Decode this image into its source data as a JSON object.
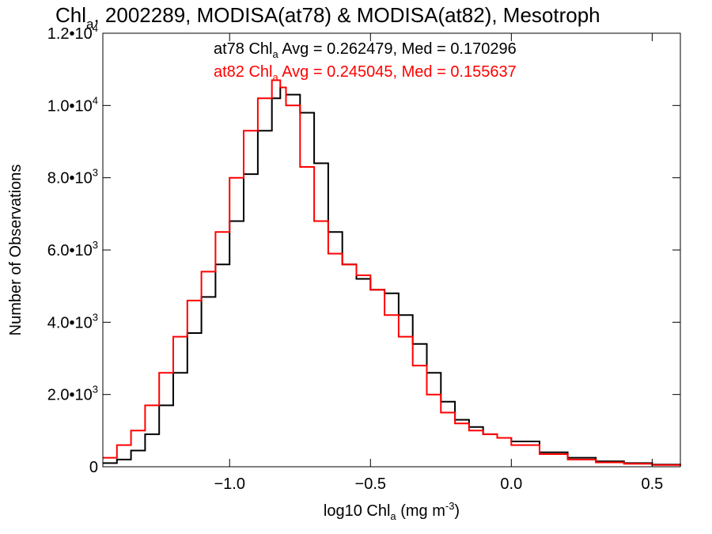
{
  "chart_data": {
    "type": "line",
    "title": {
      "main": "Chl",
      "sub": "a",
      "rest": ", 2002289, MODISA(at78) & MODISA(at82), Mesotroph"
    },
    "xlabel": {
      "main": "log10 Chl",
      "sub": "a",
      "rest": " (mg m",
      "sup": "-3",
      "end": ")"
    },
    "ylabel": "Number of Observations",
    "xlim": [
      -1.45,
      0.6
    ],
    "ylim": [
      0,
      12000
    ],
    "x_ticks": [
      {
        "value": -1.0,
        "label": "−1.0"
      },
      {
        "value": -0.5,
        "label": "−0.5"
      },
      {
        "value": 0.0,
        "label": "0.0"
      },
      {
        "value": 0.5,
        "label": "0.5"
      }
    ],
    "y_ticks": [
      {
        "value": 0,
        "label": "0"
      },
      {
        "value": 2000,
        "mant": "2.0•10",
        "exp": "3"
      },
      {
        "value": 4000,
        "mant": "4.0•10",
        "exp": "3"
      },
      {
        "value": 6000,
        "mant": "6.0•10",
        "exp": "3"
      },
      {
        "value": 8000,
        "mant": "8.0•10",
        "exp": "3"
      },
      {
        "value": 10000,
        "mant": "1.0•10",
        "exp": "4"
      },
      {
        "value": 12000,
        "mant": "1.2•10",
        "exp": "4"
      }
    ],
    "annotations": [
      {
        "pre": "at78 Chl",
        "sub": "a",
        "post": " Avg = 0.262479, Med = 0.170296",
        "color": "#000000"
      },
      {
        "pre": "at82 Chl",
        "sub": "a",
        "post": " Avg = 0.245045, Med = 0.155637",
        "color": "#ff0000"
      }
    ],
    "series": [
      {
        "color": "#000000",
        "x": [
          -1.45,
          -1.4,
          -1.35,
          -1.3,
          -1.25,
          -1.2,
          -1.15,
          -1.1,
          -1.05,
          -1.0,
          -0.95,
          -0.9,
          -0.85,
          -0.82,
          -0.8,
          -0.75,
          -0.7,
          -0.65,
          -0.6,
          -0.55,
          -0.5,
          -0.45,
          -0.4,
          -0.35,
          -0.3,
          -0.25,
          -0.2,
          -0.15,
          -0.1,
          -0.05,
          0.0,
          0.1,
          0.2,
          0.3,
          0.4,
          0.5,
          0.6
        ],
        "y": [
          100,
          200,
          450,
          900,
          1700,
          2600,
          3700,
          4700,
          5600,
          6800,
          8100,
          9300,
          10200,
          10500,
          10300,
          9800,
          8400,
          6500,
          5600,
          5200,
          4900,
          4800,
          4200,
          3400,
          2600,
          1800,
          1300,
          1100,
          900,
          800,
          700,
          400,
          250,
          150,
          100,
          60,
          30
        ]
      },
      {
        "color": "#ff0000",
        "x": [
          -1.45,
          -1.4,
          -1.35,
          -1.3,
          -1.25,
          -1.2,
          -1.15,
          -1.1,
          -1.05,
          -1.0,
          -0.95,
          -0.9,
          -0.85,
          -0.82,
          -0.8,
          -0.75,
          -0.7,
          -0.65,
          -0.6,
          -0.55,
          -0.5,
          -0.45,
          -0.4,
          -0.35,
          -0.3,
          -0.25,
          -0.2,
          -0.15,
          -0.1,
          -0.05,
          0.0,
          0.1,
          0.2,
          0.3,
          0.4,
          0.5,
          0.6
        ],
        "y": [
          250,
          600,
          1000,
          1700,
          2600,
          3600,
          4600,
          5400,
          6500,
          8000,
          9300,
          10200,
          10700,
          10500,
          10000,
          8300,
          6800,
          5900,
          5600,
          5300,
          4900,
          4200,
          3600,
          2800,
          2000,
          1500,
          1200,
          1000,
          900,
          800,
          600,
          350,
          200,
          120,
          80,
          50,
          25
        ]
      }
    ]
  }
}
